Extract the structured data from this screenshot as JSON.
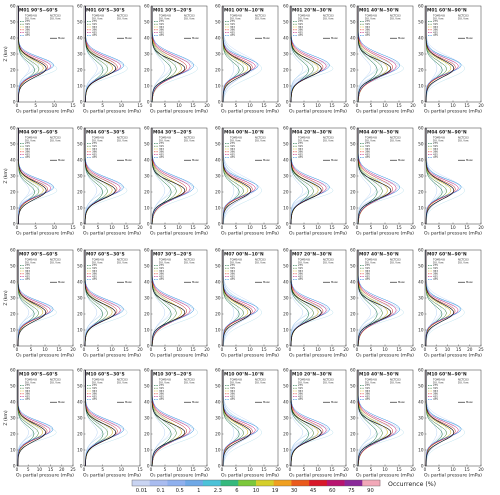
{
  "chart_data": {
    "type": "line",
    "layout": "4 rows x 7 columns of small-multiple profile panels",
    "xlabel": "O₃ partial pressure (mPa)",
    "ylabel": "Z (km)",
    "ylim": [
      0,
      60
    ],
    "yticks": [
      0,
      10,
      20,
      30,
      40,
      50,
      60
    ],
    "rows": [
      {
        "month": "M01",
        "xlims": [
          [
            0,
            15
          ],
          [
            0,
            15
          ],
          [
            0,
            20
          ],
          [
            0,
            20
          ],
          [
            0,
            20
          ],
          [
            0,
            20
          ],
          [
            0,
            20
          ]
        ],
        "xticks": [
          [
            0,
            5,
            10,
            15
          ],
          [
            0,
            5,
            10,
            15
          ],
          [
            0,
            5,
            10,
            15,
            20
          ],
          [
            0,
            5,
            10,
            15,
            20
          ],
          [
            0,
            5,
            10,
            15,
            20
          ],
          [
            0,
            5,
            10,
            15,
            20
          ],
          [
            0,
            5,
            10,
            15,
            20
          ]
        ]
      },
      {
        "month": "M04",
        "xlims": [
          [
            0,
            15
          ],
          [
            0,
            20
          ],
          [
            0,
            20
          ],
          [
            0,
            20
          ],
          [
            0,
            20
          ],
          [
            0,
            20
          ],
          [
            0,
            20
          ]
        ],
        "xticks": [
          [
            0,
            5,
            10,
            15
          ],
          [
            0,
            5,
            10,
            15,
            20
          ],
          [
            0,
            5,
            10,
            15,
            20
          ],
          [
            0,
            5,
            10,
            15,
            20
          ],
          [
            0,
            5,
            10,
            15,
            20
          ],
          [
            0,
            5,
            10,
            15,
            20
          ],
          [
            0,
            5,
            10,
            15,
            20
          ]
        ]
      },
      {
        "month": "M07",
        "xlims": [
          [
            0,
            20
          ],
          [
            0,
            20
          ],
          [
            0,
            20
          ],
          [
            0,
            20
          ],
          [
            0,
            20
          ],
          [
            0,
            20
          ],
          [
            0,
            25
          ]
        ],
        "xticks": [
          [
            0,
            5,
            10,
            15,
            20
          ],
          [
            0,
            5,
            10,
            15,
            20
          ],
          [
            0,
            5,
            10,
            15,
            20
          ],
          [
            0,
            5,
            10,
            15,
            20
          ],
          [
            0,
            5,
            10,
            15,
            20
          ],
          [
            0,
            5,
            10,
            15,
            20
          ],
          [
            0,
            5,
            10,
            15,
            20,
            25
          ]
        ]
      },
      {
        "month": "M10",
        "xlims": [
          [
            0,
            25
          ],
          [
            0,
            15
          ],
          [
            0,
            20
          ],
          [
            0,
            20
          ],
          [
            0,
            20
          ],
          [
            0,
            20
          ],
          [
            0,
            20
          ]
        ],
        "xticks": [
          [
            0,
            5,
            10,
            15,
            20,
            25
          ],
          [
            0,
            5,
            10,
            15
          ],
          [
            0,
            5,
            10,
            15,
            20
          ],
          [
            0,
            5,
            10,
            15,
            20
          ],
          [
            0,
            5,
            10,
            15,
            20
          ],
          [
            0,
            5,
            10,
            15,
            20
          ],
          [
            0,
            5,
            10,
            15,
            20
          ]
        ]
      }
    ],
    "bands": [
      "90°S−60°S",
      "60°S−30°S",
      "30°S−20°S",
      "00°N−10°N",
      "20°N−30°N",
      "40°N−50°N",
      "60°N−90°N"
    ],
    "legend_header": [
      "TOMS-V8",
      "NCTCO3"
    ],
    "legend_subheader": [
      "DU",
      "km",
      "DU",
      "km"
    ],
    "legend_rows": [
      "275",
      "315",
      "353",
      "396",
      "435",
      "475"
    ],
    "mean_label": "Mean",
    "colorbar": {
      "label": "Occurrence (%)",
      "ticks": [
        "0.01",
        "0.1",
        "0.5",
        "1",
        "2.3",
        "6",
        "10",
        "19",
        "30",
        "45",
        "60",
        "75",
        "90"
      ],
      "colors": [
        "#c9d4f2",
        "#a9bcf0",
        "#8fb0ee",
        "#6fa8e6",
        "#4cc2d8",
        "#35b97d",
        "#7cc83a",
        "#d5cf2a",
        "#f0a020",
        "#ea5a1c",
        "#d8182a",
        "#b81470",
        "#8a2a9a",
        "#f2a8b8"
      ]
    }
  }
}
